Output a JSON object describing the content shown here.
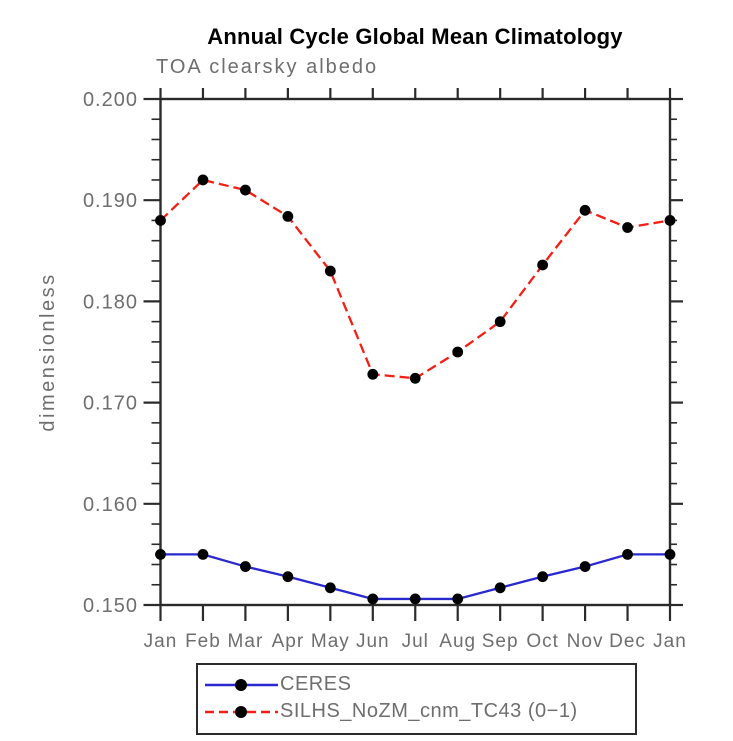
{
  "chart_data": {
    "type": "line",
    "title": "Annual Cycle Global Mean Climatology",
    "subtitle": "TOA clearsky albedo",
    "ylabel": "dimensionless",
    "xlabel": "",
    "categories": [
      "Jan",
      "Feb",
      "Mar",
      "Apr",
      "May",
      "Jun",
      "Jul",
      "Aug",
      "Sep",
      "Oct",
      "Nov",
      "Dec",
      "Jan"
    ],
    "series": [
      {
        "name": "CERES",
        "color": "#2a28cf",
        "line_style": "solid",
        "marker": "filled-black-circle",
        "values": [
          0.155,
          0.155,
          0.1538,
          0.1528,
          0.1517,
          0.1506,
          0.1506,
          0.1506,
          0.1517,
          0.1528,
          0.1538,
          0.155,
          0.155
        ]
      },
      {
        "name": "SILHS_NoZM_cnm_TC43 (0−1)",
        "color": "#f41f14",
        "line_style": "dashed",
        "marker": "filled-black-circle",
        "values": [
          0.188,
          0.192,
          0.191,
          0.1884,
          0.183,
          0.1728,
          0.1724,
          0.175,
          0.178,
          0.1836,
          0.189,
          0.1873,
          0.188
        ]
      }
    ],
    "ylim": [
      0.15,
      0.2
    ],
    "y_major_tick_step": 0.01,
    "y_minor_tick_step": 0.002,
    "y_tick_labels": [
      "0.150",
      "0.160",
      "0.170",
      "0.180",
      "0.190",
      "0.200"
    ],
    "grid": false,
    "legend_position": "bottom-center"
  },
  "colors": {
    "background": "#ffffff",
    "title_text": "#000000",
    "secondary_text": "#6e6e6e",
    "axis_frame": "#2b2b2b",
    "marker_fill": "#000000",
    "ceres_line": "#2a28cf",
    "silhs_line": "#f41f14"
  }
}
